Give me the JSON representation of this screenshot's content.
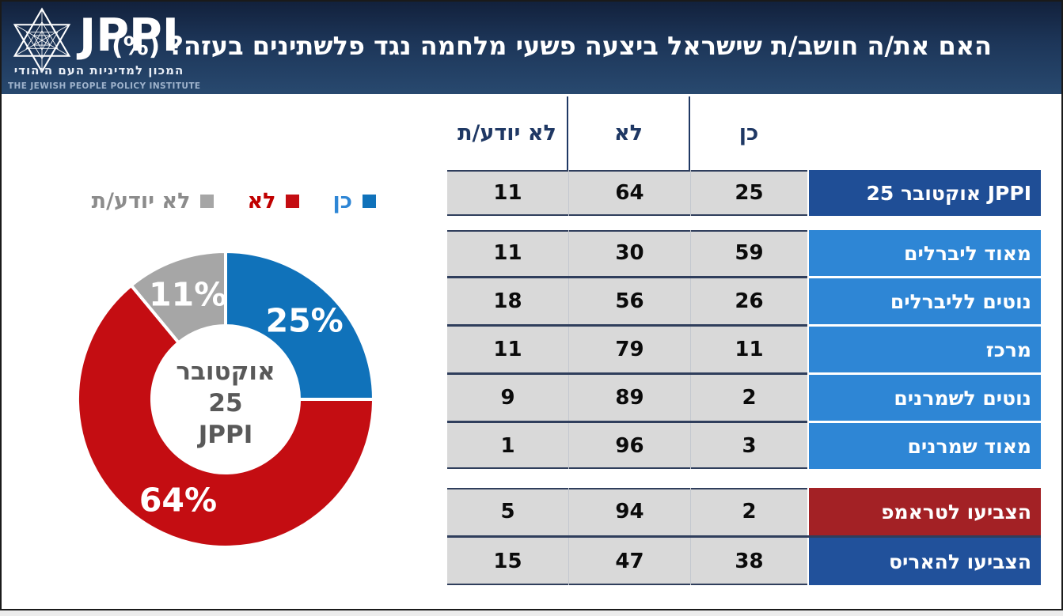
{
  "header": {
    "logo": {
      "brand": "JPPI",
      "tagline_he": "המכון למדיניות העם היהודי",
      "tagline_en": "THE JEWISH PEOPLE POLICY INSTITUTE"
    },
    "title": "האם את/ה חושב/ת שישראל ביצעה פשעי מלחמה נגד פלשתינים בעזה? (%)"
  },
  "colors": {
    "header_gradient_top": "#12213C",
    "header_gradient_bottom": "#28496F",
    "donut_yes": "#1072BA",
    "donut_no": "#C40D12",
    "donut_dont_know": "#A6A6A6",
    "donut_center_text": "#595959",
    "table_value_bg": "#D9D9D9",
    "table_separator": "#2F3E5C",
    "column_header_text": "#1F3864",
    "row_overall_navy": "#1F4E96",
    "row_ideology_blue": "#2E86D5",
    "row_trump_red": "#A32125",
    "row_harris_blue": "#21519B"
  },
  "chart_data": [
    {
      "type": "pie",
      "subtype": "donut",
      "title": "האם את/ה חושב/ת שישראל ביצעה פשעי מלחמה נגד פלשתינים בעזה? (%)",
      "labels": [
        "כן",
        "לא",
        "לא יודע/ת"
      ],
      "values": [
        25,
        64,
        11
      ],
      "value_suffix": "%",
      "colors": [
        "#1072BA",
        "#C40D12",
        "#A6A6A6"
      ],
      "start_angle_deg": 0,
      "direction": "clockwise",
      "center_lines": [
        "אוקטובר",
        "25",
        "JPPI"
      ],
      "legend_position": "above-chart",
      "legend": [
        {
          "label": "כן",
          "swatch": "#1072BA",
          "text_color": "#2E86D5"
        },
        {
          "label": "לא",
          "swatch": "#C40D12",
          "text_color": "#C00000"
        },
        {
          "label": "לא יודע/ת",
          "swatch": "#A6A6A6",
          "text_color": "#8C8C8C"
        }
      ]
    },
    {
      "type": "table",
      "columns": [
        "לא יודע/ת",
        "לא",
        "כן"
      ],
      "groups": [
        {
          "name": "overall",
          "rows": [
            {
              "label": "JPPI אוקטובר 25",
              "color": "#1F4E96",
              "values": [
                11,
                64,
                25
              ]
            }
          ]
        },
        {
          "name": "ideology",
          "rows": [
            {
              "label": "מאוד ליברלים",
              "color": "#2E86D5",
              "values": [
                11,
                30,
                59
              ]
            },
            {
              "label": "נוטים לליברלים",
              "color": "#2E86D5",
              "values": [
                18,
                56,
                26
              ]
            },
            {
              "label": "מרכז",
              "color": "#2E86D5",
              "values": [
                11,
                79,
                11
              ]
            },
            {
              "label": "נוטים לשמרנים",
              "color": "#2E86D5",
              "values": [
                9,
                89,
                2
              ]
            },
            {
              "label": "מאוד שמרנים",
              "color": "#2E86D5",
              "values": [
                1,
                96,
                3
              ]
            }
          ]
        },
        {
          "name": "us-vote-2024",
          "rows": [
            {
              "label": "הצביעו לטראמפ",
              "color": "#A32125",
              "values": [
                5,
                94,
                2
              ]
            },
            {
              "label": "הצביעו להאריס",
              "color": "#21519B",
              "values": [
                15,
                47,
                38
              ]
            }
          ]
        }
      ]
    }
  ]
}
